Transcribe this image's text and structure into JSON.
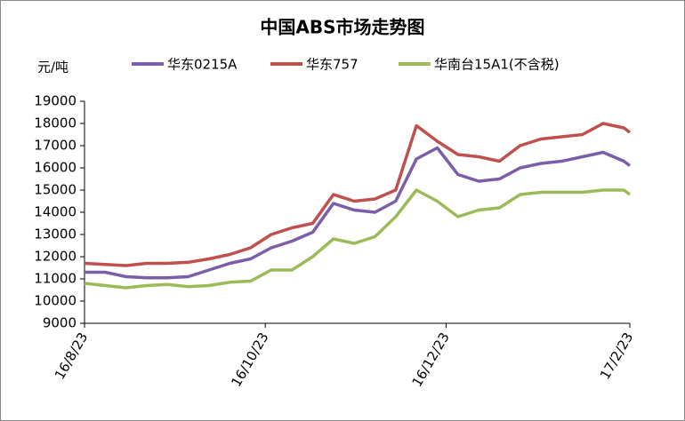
{
  "chart_data": {
    "type": "line",
    "title": "中国ABS市场走势图",
    "y_label": "元/吨",
    "x": [
      "2016-08-23",
      "2016-08-30",
      "2016-09-06",
      "2016-09-13",
      "2016-09-20",
      "2016-09-27",
      "2016-10-04",
      "2016-10-11",
      "2016-10-18",
      "2016-10-25",
      "2016-11-01",
      "2016-11-08",
      "2016-11-15",
      "2016-11-22",
      "2016-11-29",
      "2016-12-06",
      "2016-12-13",
      "2016-12-20",
      "2016-12-27",
      "2017-01-03",
      "2017-01-10",
      "2017-01-17",
      "2017-01-24",
      "2017-01-31",
      "2017-02-07",
      "2017-02-14",
      "2017-02-21",
      "2017-02-23"
    ],
    "series": [
      {
        "name": "华东0215A",
        "color": "#7b5ea7",
        "values": [
          11300,
          11300,
          11100,
          11050,
          11050,
          11100,
          11400,
          11700,
          11900,
          12400,
          12700,
          13100,
          14400,
          14100,
          14000,
          14500,
          16400,
          16900,
          15700,
          15400,
          15500,
          16000,
          16200,
          16300,
          16500,
          16700,
          16300,
          16100
        ]
      },
      {
        "name": "华东757",
        "color": "#c0504d",
        "values": [
          11700,
          11650,
          11600,
          11700,
          11700,
          11750,
          11900,
          12100,
          12400,
          13000,
          13300,
          13500,
          14800,
          14500,
          14600,
          15000,
          17900,
          17200,
          16600,
          16500,
          16300,
          17000,
          17300,
          17400,
          17500,
          18000,
          17800,
          17600
        ]
      },
      {
        "name": "华南台15A1(不含税)",
        "color": "#9bbb59",
        "values": [
          10800,
          10700,
          10600,
          10700,
          10750,
          10650,
          10700,
          10850,
          10900,
          11400,
          11400,
          12000,
          12800,
          12600,
          12900,
          13800,
          15000,
          14500,
          13800,
          14100,
          14200,
          14800,
          14900,
          14900,
          14900,
          15000,
          15000,
          14800
        ]
      }
    ],
    "xlim": [
      "2016-08-23",
      "2017-02-23"
    ],
    "xticks": [
      {
        "value": "2016-08-23",
        "label": "16/8/23"
      },
      {
        "value": "2016-10-23",
        "label": "16/10/23"
      },
      {
        "value": "2016-12-23",
        "label": "16/12/23"
      },
      {
        "value": "2017-02-23",
        "label": "17/2/23"
      }
    ],
    "ylim": [
      9000,
      19000
    ],
    "yticks": [
      9000,
      10000,
      11000,
      12000,
      13000,
      14000,
      15000,
      16000,
      17000,
      18000,
      19000
    ],
    "grid": false
  }
}
